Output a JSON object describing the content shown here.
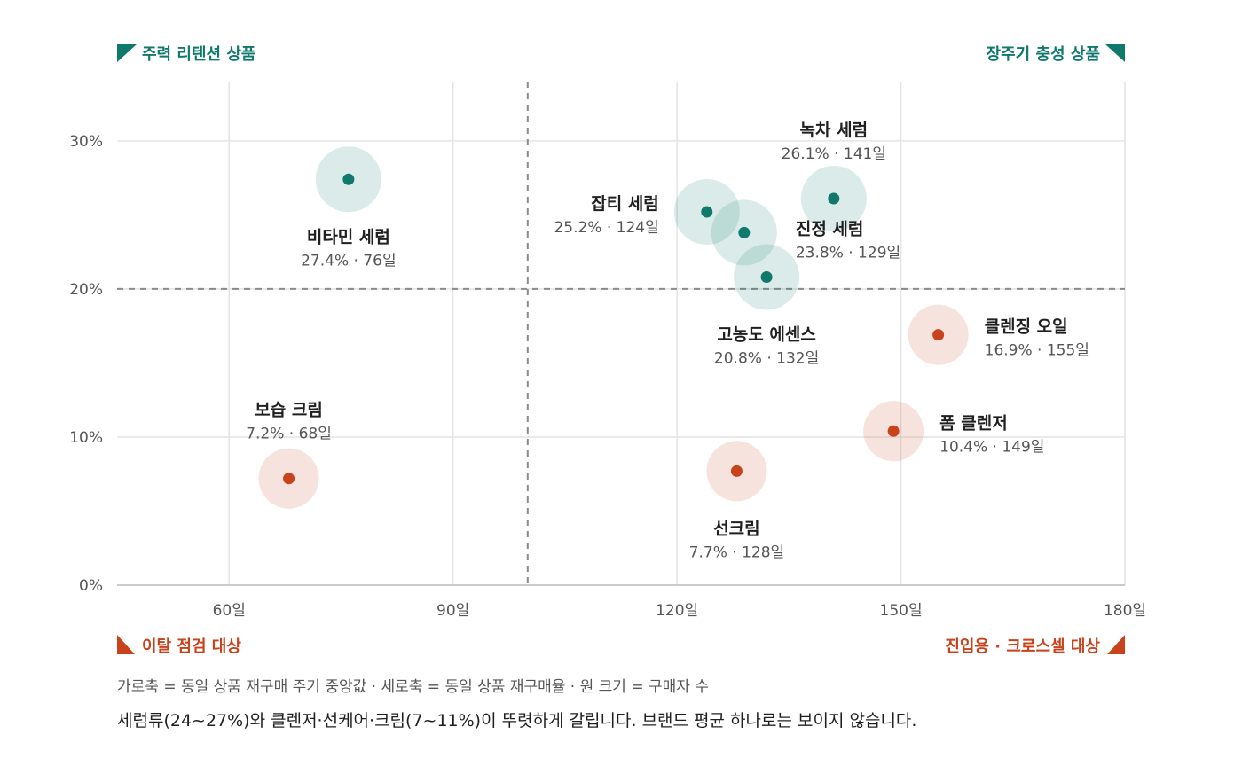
{
  "chart_data": {
    "type": "scatter",
    "x_ticks": [
      {
        "value": 60,
        "label": "60일"
      },
      {
        "value": 90,
        "label": "90일"
      },
      {
        "value": 120,
        "label": "120일"
      },
      {
        "value": 150,
        "label": "150일"
      },
      {
        "value": 180,
        "label": "180일"
      }
    ],
    "y_ticks": [
      {
        "value": 0,
        "label": "0%"
      },
      {
        "value": 10,
        "label": "10%"
      },
      {
        "value": 20,
        "label": "20%"
      },
      {
        "value": 30,
        "label": "30%"
      }
    ],
    "xlim": [
      45,
      180
    ],
    "ylim": [
      0,
      34
    ],
    "grid": true,
    "threshold_x": 100,
    "threshold_y": 20,
    "quadrant_labels": {
      "top_left": "주력 리텐션 상품",
      "top_right": "장주기 충성 상품",
      "bottom_left": "이탈 점검 대상",
      "bottom_right": "진입용 · 크로스셀 대상"
    },
    "colors": {
      "high": "#0f7a6c",
      "low": "#c8431b",
      "grid": "#e4e4e4",
      "threshold": "#8a8a8a"
    },
    "points": [
      {
        "name": "비타민 세럼",
        "x": 76,
        "y": 27.4,
        "value_label": "27.4% · 76일",
        "group": "high",
        "label_pos": "below"
      },
      {
        "name": "잡티 세럼",
        "x": 124,
        "y": 25.2,
        "value_label": "25.2% · 124일",
        "group": "high",
        "label_pos": "left"
      },
      {
        "name": "녹차 세럼",
        "x": 141,
        "y": 26.1,
        "value_label": "26.1% · 141일",
        "group": "high",
        "label_pos": "above"
      },
      {
        "name": "진정 세럼",
        "x": 129,
        "y": 23.8,
        "value_label": "23.8% · 129일",
        "group": "high",
        "label_pos": "right"
      },
      {
        "name": "고농도 에센스",
        "x": 132,
        "y": 20.8,
        "value_label": "20.8% · 132일",
        "group": "high",
        "label_pos": "below"
      },
      {
        "name": "클렌징 오일",
        "x": 155,
        "y": 16.9,
        "value_label": "16.9% · 155일",
        "group": "low",
        "label_pos": "right"
      },
      {
        "name": "폼 클렌저",
        "x": 149,
        "y": 10.4,
        "value_label": "10.4% · 149일",
        "group": "low",
        "label_pos": "right"
      },
      {
        "name": "보습 크림",
        "x": 68,
        "y": 7.2,
        "value_label": "7.2% · 68일",
        "group": "low",
        "label_pos": "above"
      },
      {
        "name": "선크림",
        "x": 128,
        "y": 7.7,
        "value_label": "7.7% · 128일",
        "group": "low",
        "label_pos": "below"
      }
    ]
  },
  "footnote": "가로축 = 동일 상품 재구매 주기 중앙값 · 세로축 = 동일 상품 재구매율 · 원 크기 = 구매자 수",
  "summary": "세럼류(24~27%)와 클렌저·선케어·크림(7~11%)이 뚜렷하게 갈립니다. 브랜드 평균 하나로는 보이지 않습니다."
}
